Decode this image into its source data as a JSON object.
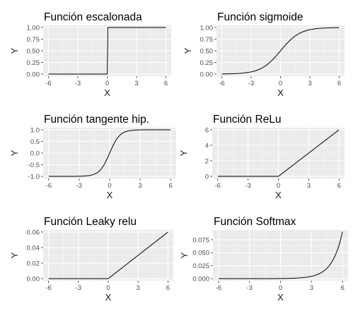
{
  "chart_data": [
    {
      "type": "line",
      "title": "Función escalonada",
      "xlabel": "X",
      "ylabel": "Y",
      "xlim": [
        -6,
        6
      ],
      "ylim": [
        0,
        1
      ],
      "x_ticks": [
        -6,
        -3,
        0,
        3,
        6
      ],
      "y_ticks": [
        0,
        0.25,
        0.5,
        0.75,
        1
      ],
      "x_tick_labels": [
        "-6",
        "-3",
        "0",
        "3",
        "6"
      ],
      "y_tick_labels": [
        "0.00",
        "0.25",
        "0.50",
        "0.75",
        "1.00"
      ],
      "grid": true,
      "function": "step",
      "series": [
        {
          "x": [
            -6,
            -4,
            -2,
            0,
            0,
            2,
            4,
            6
          ],
          "y": [
            0,
            0,
            0,
            0,
            1,
            1,
            1,
            1
          ]
        }
      ]
    },
    {
      "type": "line",
      "title": "Función sigmoide",
      "xlabel": "X",
      "ylabel": "Y",
      "xlim": [
        -6,
        6
      ],
      "ylim": [
        0,
        1
      ],
      "x_ticks": [
        -6,
        -3,
        0,
        3,
        6
      ],
      "y_ticks": [
        0,
        0.25,
        0.5,
        0.75,
        1
      ],
      "x_tick_labels": [
        "-6",
        "-3",
        "0",
        "3",
        "6"
      ],
      "y_tick_labels": [
        "0.00",
        "0.25",
        "0.50",
        "0.75",
        "1.00"
      ],
      "grid": true,
      "function": "sigmoid",
      "series": [
        {
          "x": [
            -6,
            -5,
            -4,
            -3,
            -2,
            -1,
            0,
            1,
            2,
            3,
            4,
            5,
            6
          ],
          "y": [
            0.002,
            0.007,
            0.018,
            0.047,
            0.119,
            0.269,
            0.5,
            0.731,
            0.881,
            0.953,
            0.982,
            0.993,
            0.998
          ]
        }
      ]
    },
    {
      "type": "line",
      "title": "Función tangente hip.",
      "xlabel": "X",
      "ylabel": "Y",
      "xlim": [
        -6,
        6
      ],
      "ylim": [
        -1,
        1
      ],
      "x_ticks": [
        -6,
        -3,
        0,
        3,
        6
      ],
      "y_ticks": [
        -1,
        -0.5,
        0,
        0.5,
        1
      ],
      "x_tick_labels": [
        "-6",
        "-3",
        "0",
        "3",
        "6"
      ],
      "y_tick_labels": [
        "-1.0",
        "-0.5",
        "0.0",
        "0.5",
        "1.0"
      ],
      "grid": true,
      "function": "tanh",
      "series": [
        {
          "x": [
            -6,
            -4,
            -3,
            -2,
            -1,
            0,
            1,
            2,
            3,
            4,
            6
          ],
          "y": [
            -1.0,
            -0.999,
            -0.995,
            -0.964,
            -0.762,
            0,
            0.762,
            0.964,
            0.995,
            0.999,
            1.0
          ]
        }
      ]
    },
    {
      "type": "line",
      "title": "Función ReLu",
      "xlabel": "X",
      "ylabel": "Y",
      "xlim": [
        -6,
        6
      ],
      "ylim": [
        0,
        6
      ],
      "x_ticks": [
        -6,
        -3,
        0,
        3,
        6
      ],
      "y_ticks": [
        0,
        2,
        4,
        6
      ],
      "x_tick_labels": [
        "-6",
        "-3",
        "0",
        "3",
        "6"
      ],
      "y_tick_labels": [
        "0",
        "2",
        "4",
        "6"
      ],
      "grid": true,
      "function": "relu",
      "series": [
        {
          "x": [
            -6,
            -3,
            0,
            3,
            6
          ],
          "y": [
            0,
            0,
            0,
            3,
            6
          ]
        }
      ]
    },
    {
      "type": "line",
      "title": "Función Leaky relu",
      "xlabel": "X",
      "ylabel": "Y",
      "xlim": [
        -6,
        6
      ],
      "ylim": [
        0,
        0.06
      ],
      "x_ticks": [
        -6,
        -3,
        0,
        3,
        6
      ],
      "y_ticks": [
        0,
        0.02,
        0.04,
        0.06
      ],
      "x_tick_labels": [
        "-6",
        "-3",
        "0",
        "3",
        "6"
      ],
      "y_tick_labels": [
        "0.00",
        "0.02",
        "0.04",
        "0.06"
      ],
      "grid": true,
      "function": "leaky_relu",
      "series": [
        {
          "x": [
            -6,
            -3,
            0,
            3,
            6
          ],
          "y": [
            0,
            0,
            0,
            0.03,
            0.06
          ]
        }
      ]
    },
    {
      "type": "line",
      "title": "Función Softmax",
      "xlabel": "X",
      "ylabel": "Y",
      "xlim": [
        -6,
        6
      ],
      "ylim": [
        0,
        0.09
      ],
      "x_ticks": [
        -6,
        -3,
        0,
        3,
        6
      ],
      "y_ticks": [
        0,
        0.025,
        0.05,
        0.075
      ],
      "x_tick_labels": [
        "-6",
        "-3",
        "0",
        "3",
        "6"
      ],
      "y_tick_labels": [
        "0.000",
        "0.025",
        "0.050",
        "0.075"
      ],
      "grid": true,
      "function": "softmax",
      "series": [
        {
          "x": [
            -6,
            -4,
            -2,
            0,
            1,
            2,
            3,
            4,
            5,
            6
          ],
          "y": [
            0.0,
            0.0,
            2e-05,
            0.00017,
            0.00045,
            0.00122,
            0.0033,
            0.009,
            0.0245,
            0.0907
          ]
        }
      ]
    }
  ]
}
